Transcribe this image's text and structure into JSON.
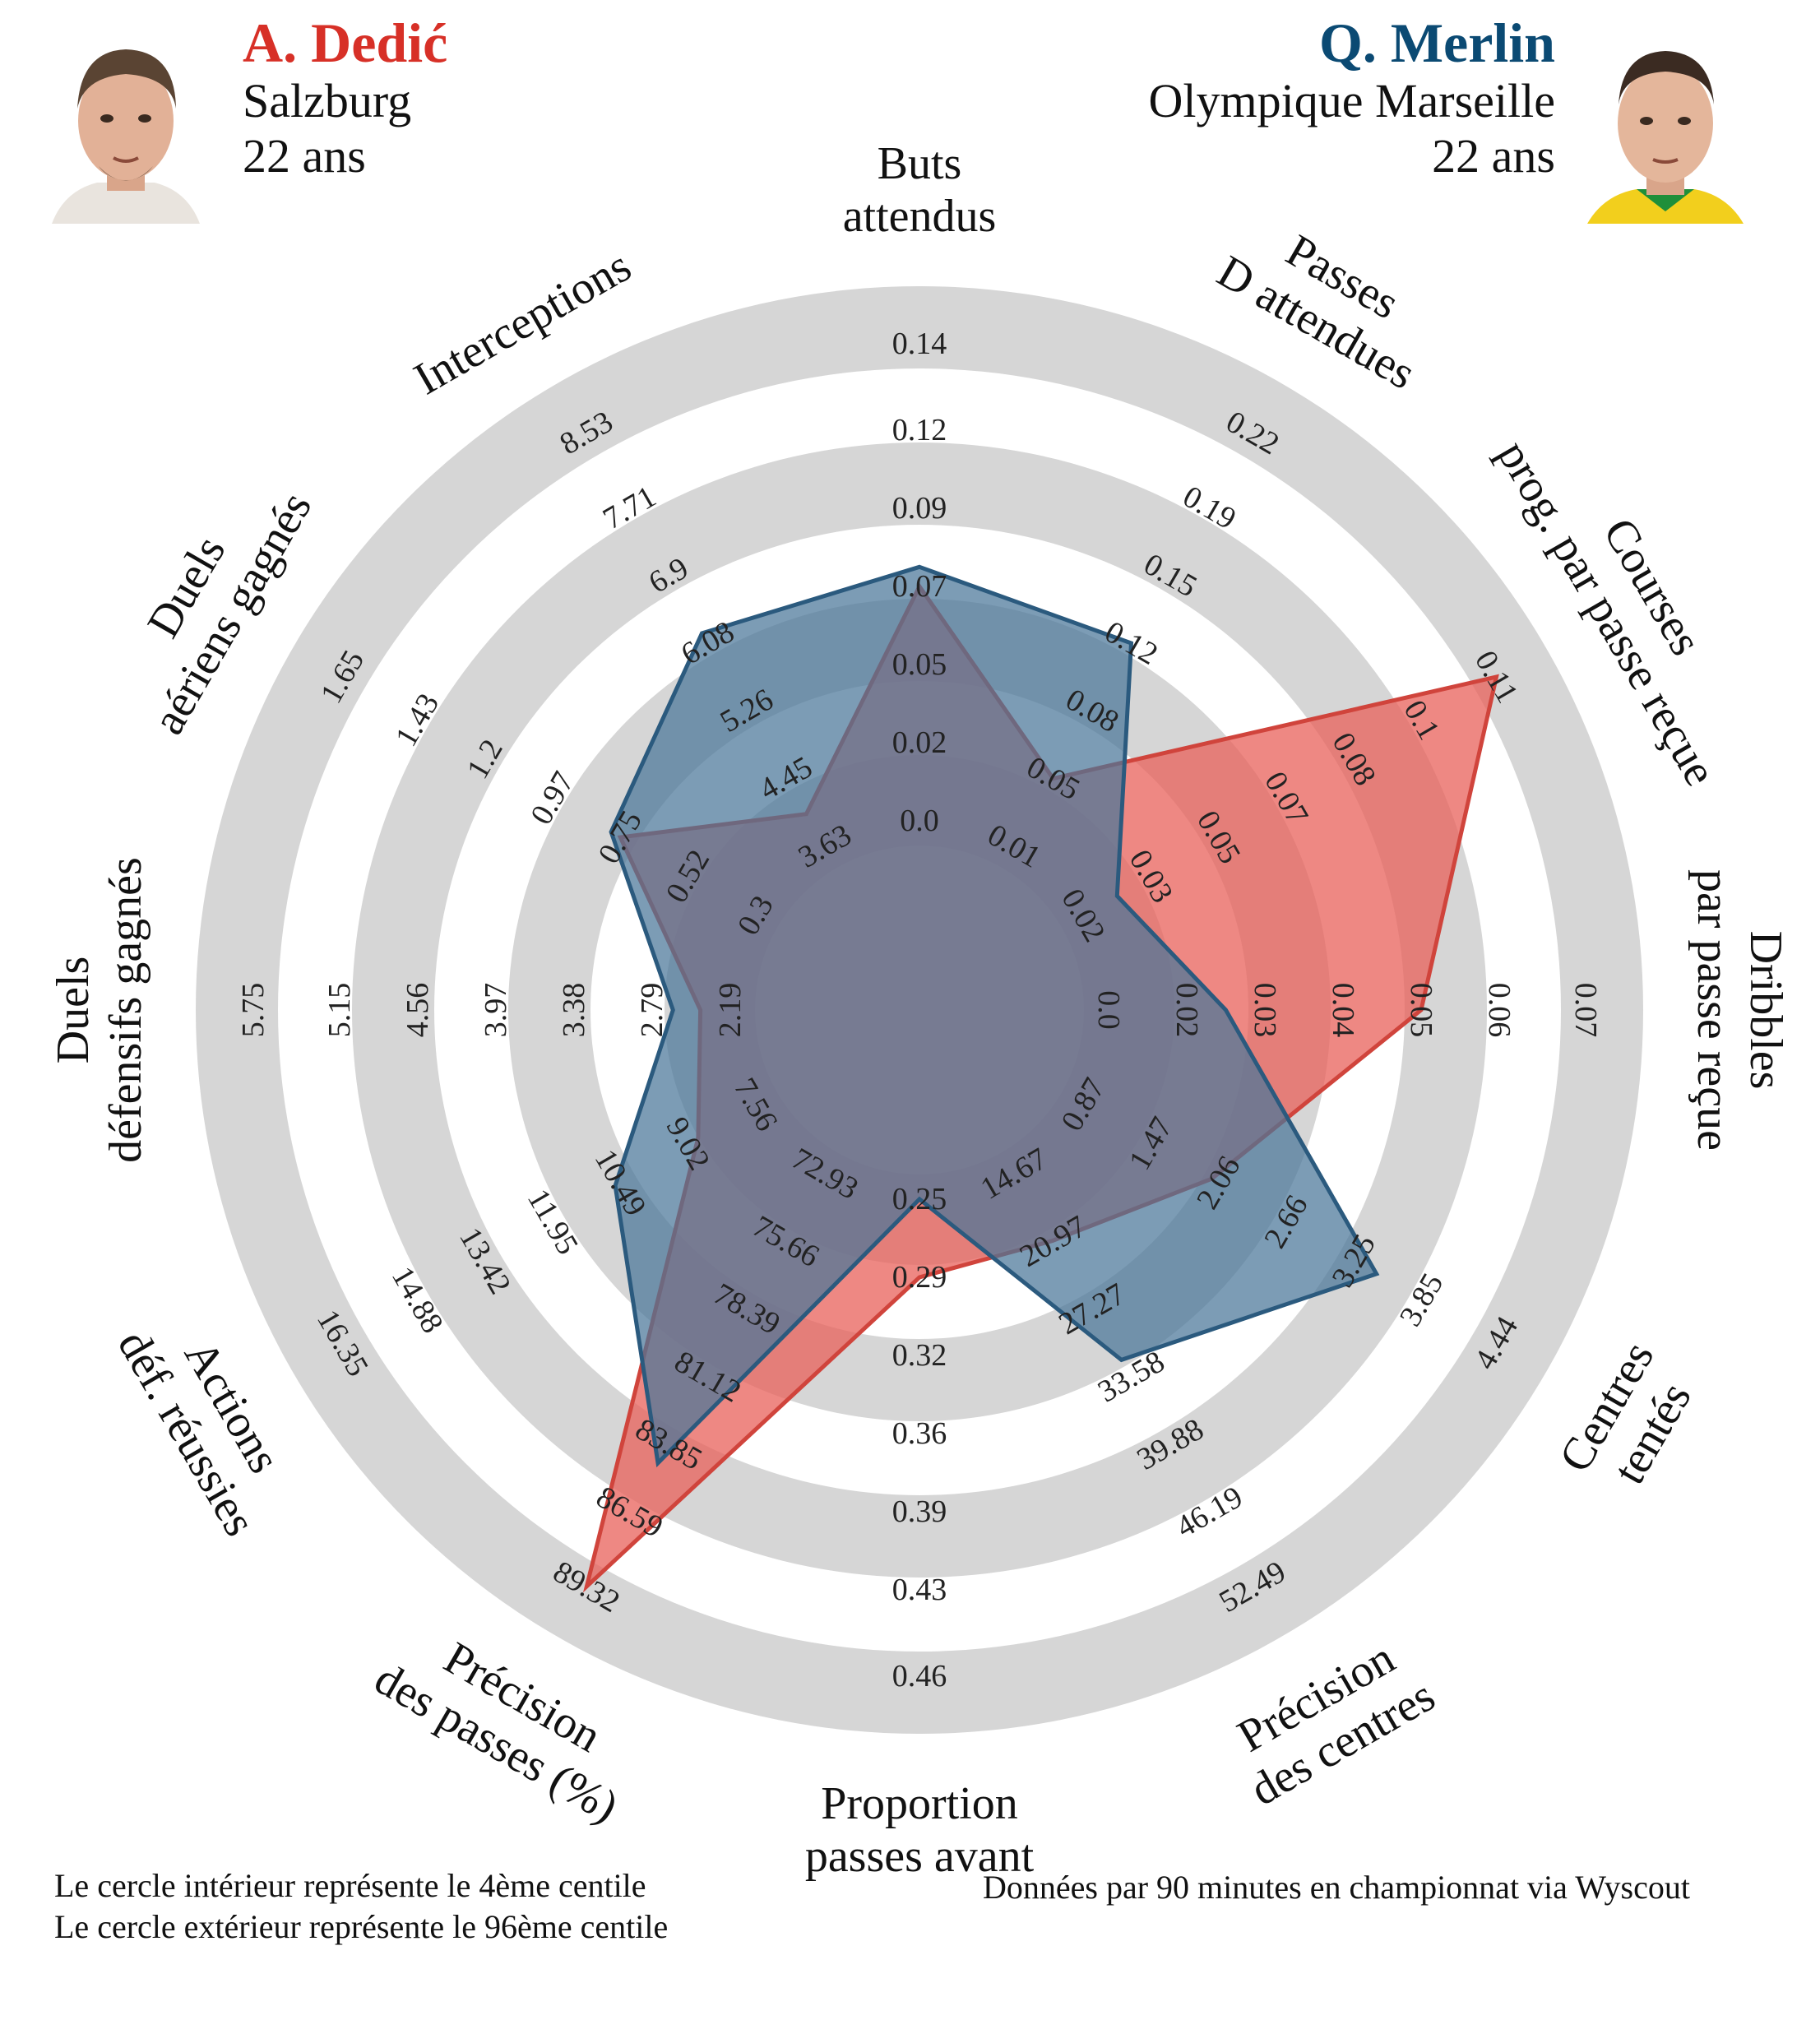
{
  "players": {
    "left": {
      "name": "A. Dedić",
      "club": "Salzburg",
      "age": "22 ans",
      "color": "#d73027"
    },
    "right": {
      "name": "Q. Merlin",
      "club": "Olympique Marseille",
      "age": "22 ans",
      "color": "#0b4a73"
    }
  },
  "colors": {
    "left_fill": "#e8605a",
    "left_line": "#d0443c",
    "right_fill": "#4a7699",
    "right_line": "#2b5a7e",
    "ring_dark": "#d6d6d6",
    "ring_light": "#ffffff"
  },
  "footer": {
    "left_line1": "Le cercle intérieur représente le 4ème centile",
    "left_line2": "Le cercle extérieur représente le 96ème centile",
    "right": "Données par 90 minutes en championnat via Wyscout"
  },
  "chart_data": {
    "type": "radar",
    "title": "",
    "categories": [
      {
        "label": [
          "Buts",
          "attendus"
        ],
        "ticks": [
          "0.0",
          "0.02",
          "0.05",
          "0.07",
          "0.09",
          "0.12",
          "0.14"
        ]
      },
      {
        "label": [
          "Passes",
          "D attendues"
        ],
        "ticks": [
          "0.01",
          "0.05",
          "0.08",
          "0.12",
          "0.15",
          "0.19",
          "0.22"
        ]
      },
      {
        "label": [
          "Courses",
          "prog. par passe reçue"
        ],
        "ticks": [
          "0.02",
          "0.03",
          "0.05",
          "0.07",
          "0.08",
          "0.1",
          "0.11"
        ]
      },
      {
        "label": [
          "Dribbles",
          "par passe reçue"
        ],
        "ticks": [
          "0.0",
          "0.02",
          "0.03",
          "0.04",
          "0.05",
          "0.06",
          "0.07"
        ]
      },
      {
        "label": [
          "Centres",
          "tentés"
        ],
        "ticks": [
          "0.87",
          "1.47",
          "2.06",
          "2.66",
          "3.25",
          "3.85",
          "4.44"
        ]
      },
      {
        "label": [
          "Précision",
          "des centres"
        ],
        "ticks": [
          "14.67",
          "20.97",
          "27.27",
          "33.58",
          "39.88",
          "46.19",
          "52.49"
        ]
      },
      {
        "label": [
          "Proportion",
          "passes avant"
        ],
        "ticks": [
          "0.25",
          "0.29",
          "0.32",
          "0.36",
          "0.39",
          "0.43",
          "0.46"
        ]
      },
      {
        "label": [
          "Précision",
          "des passes (%)"
        ],
        "ticks": [
          "72.93",
          "75.66",
          "78.39",
          "81.12",
          "83.85",
          "86.59",
          "89.32"
        ]
      },
      {
        "label": [
          "Actions",
          "déf. réussies"
        ],
        "ticks": [
          "7.56",
          "9.02",
          "10.49",
          "11.95",
          "13.42",
          "14.88",
          "16.35"
        ]
      },
      {
        "label": [
          "Duels",
          "défensifs gagnés"
        ],
        "ticks": [
          "2.19",
          "2.79",
          "3.38",
          "3.97",
          "4.56",
          "5.15",
          "5.75"
        ]
      },
      {
        "label": [
          "Duels",
          "aériens gagnés"
        ],
        "ticks": [
          "0.3",
          "0.52",
          "0.75",
          "0.97",
          "1.2",
          "1.43",
          "1.65"
        ]
      },
      {
        "label": [
          "Interceptions"
        ],
        "ticks": [
          "3.63",
          "4.45",
          "5.26",
          "6.08",
          "6.9",
          "7.71",
          "8.53"
        ]
      }
    ],
    "series": [
      {
        "name": "A. Dedić",
        "values": [
          0.07,
          0.05,
          0.11,
          0.05,
          2.0,
          20.9,
          0.29,
          89.3,
          8.8,
          2.42,
          0.75,
          4.02
        ]
      },
      {
        "name": "Q. Merlin",
        "values": [
          0.075,
          0.12,
          0.025,
          0.025,
          3.45,
          32.0,
          0.25,
          84.6,
          10.6,
          2.63,
          0.78,
          6.2
        ]
      }
    ]
  }
}
